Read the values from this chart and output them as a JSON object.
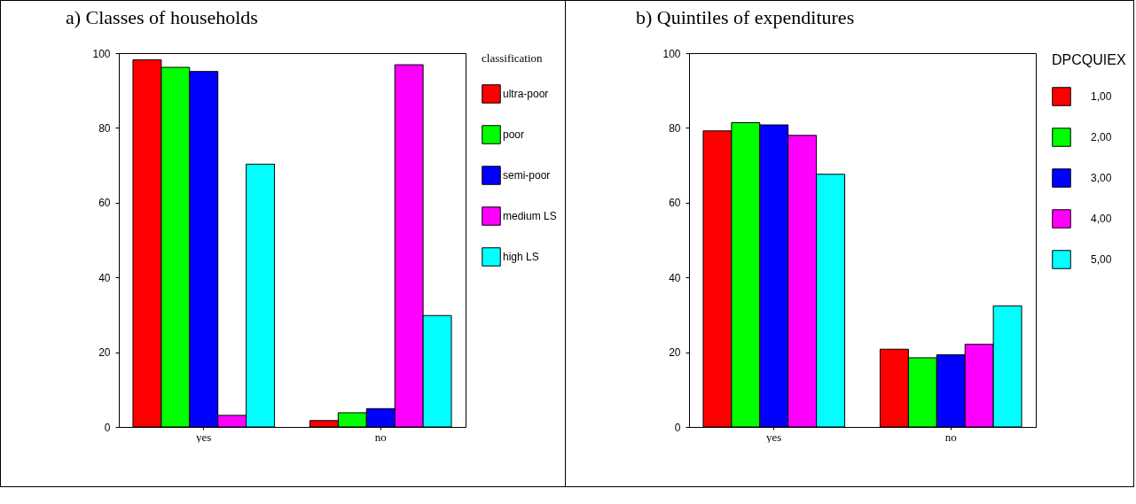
{
  "chart_data": [
    {
      "type": "bar",
      "title": "a) Classes of households",
      "legend_title": "classification",
      "categories": [
        "yes",
        "no"
      ],
      "series": [
        {
          "name": "ultra-poor",
          "color": "#ff0000",
          "values": [
            98.2,
            1.7
          ]
        },
        {
          "name": "poor",
          "color": "#00ff00",
          "values": [
            96.2,
            3.8
          ]
        },
        {
          "name": "semi-poor",
          "color": "#0000ff",
          "values": [
            95.1,
            4.9
          ]
        },
        {
          "name": "medium LS",
          "color": "#ff00ff",
          "values": [
            3.1,
            96.9
          ]
        },
        {
          "name": "high LS",
          "color": "#00ffff",
          "values": [
            70.3,
            29.8
          ]
        }
      ],
      "ylim": [
        0,
        100
      ],
      "yticks": [
        0,
        20,
        40,
        60,
        80,
        100
      ],
      "grid": false,
      "legend": "right"
    },
    {
      "type": "bar",
      "title": "b)  Quintiles of expenditures",
      "legend_title": "DPCQUIEX",
      "categories": [
        "yes",
        "no"
      ],
      "series": [
        {
          "name": "1,00",
          "color": "#ff0000",
          "values": [
            79.2,
            20.8
          ]
        },
        {
          "name": "2,00",
          "color": "#00ff00",
          "values": [
            81.4,
            18.5
          ]
        },
        {
          "name": "3,00",
          "color": "#0000ff",
          "values": [
            80.8,
            19.3
          ]
        },
        {
          "name": "4,00",
          "color": "#ff00ff",
          "values": [
            78.0,
            22.1
          ]
        },
        {
          "name": "5,00",
          "color": "#00ffff",
          "values": [
            67.6,
            32.4
          ]
        }
      ],
      "ylim": [
        0,
        100
      ],
      "yticks": [
        0,
        20,
        40,
        60,
        80,
        100
      ],
      "grid": false,
      "legend": "right"
    }
  ]
}
